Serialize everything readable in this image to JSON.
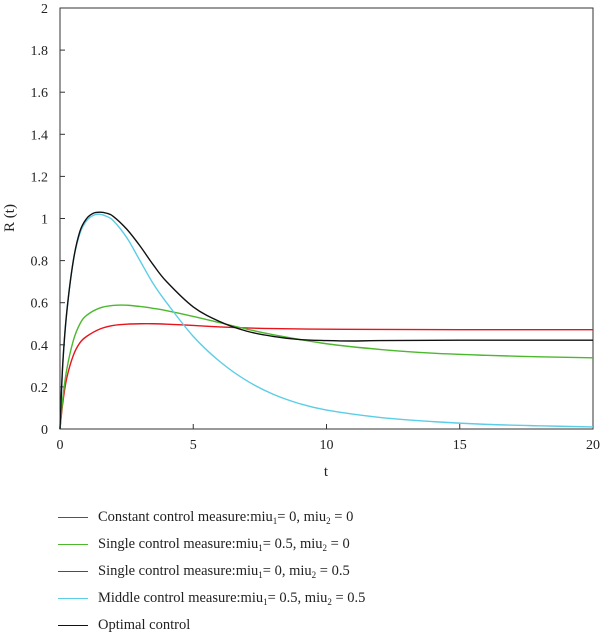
{
  "chart_data": {
    "type": "line",
    "title": "",
    "xlabel": "t",
    "ylabel": "R (t)",
    "xlim": [
      0,
      20
    ],
    "ylim": [
      0,
      2
    ],
    "xticks": [
      0,
      5,
      10,
      15,
      20
    ],
    "yticks": [
      0,
      0.2,
      0.4,
      0.6,
      0.8,
      1,
      1.2,
      1.4,
      1.6,
      1.8,
      2
    ],
    "grid": false,
    "legend_position": "bottom",
    "series": [
      {
        "name": "Constant control measure:miu1 = 0, miu2 = 0",
        "legend_parts": [
          "Constant control measure:miu",
          "1",
          "= 0, miu",
          "2",
          " = 0"
        ],
        "color": "#e8141c",
        "x": [
          0,
          0.1,
          0.25,
          0.5,
          0.75,
          1,
          1.5,
          2,
          2.5,
          3,
          3.5,
          4,
          5,
          6,
          7,
          8,
          10,
          12,
          15,
          20
        ],
        "y": [
          0,
          0.12,
          0.24,
          0.35,
          0.41,
          0.44,
          0.475,
          0.492,
          0.498,
          0.5,
          0.5,
          0.498,
          0.492,
          0.485,
          0.48,
          0.477,
          0.474,
          0.473,
          0.472,
          0.472
        ]
      },
      {
        "name": "Single control measure:miu1 = 0.5, miu2 = 0",
        "legend_parts": [
          "Single control measure:miu",
          "1",
          "= 0.5, miu",
          "2",
          " = 0"
        ],
        "color": "#4cb82e",
        "x": [
          0,
          0.1,
          0.25,
          0.5,
          0.75,
          1,
          1.5,
          2,
          2.5,
          3,
          3.5,
          4,
          5,
          6,
          7,
          8,
          10,
          12,
          14,
          16,
          18,
          20
        ],
        "y": [
          0,
          0.14,
          0.28,
          0.42,
          0.5,
          0.54,
          0.575,
          0.587,
          0.588,
          0.582,
          0.573,
          0.562,
          0.535,
          0.505,
          0.475,
          0.448,
          0.405,
          0.378,
          0.36,
          0.35,
          0.343,
          0.338
        ]
      },
      {
        "name": "Single control measure:miu1 = 0, miu2 = 0.5",
        "legend_parts": [
          "Single control measure:miu",
          "1",
          "= 0, miu",
          "2",
          " = 0.5"
        ],
        "color": "#2a4fa8",
        "x": [],
        "y": []
      },
      {
        "name": "Middle control measure:miu1 = 0.5, miu2 = 0.5",
        "legend_parts": [
          "Middle control measure:miu",
          "1",
          "= 0.5, miu",
          "2",
          " = 0.5"
        ],
        "color": "#5ccde6",
        "x": [
          0,
          0.1,
          0.25,
          0.5,
          0.75,
          1,
          1.25,
          1.5,
          1.75,
          2,
          2.5,
          3,
          3.5,
          4,
          5,
          6,
          7,
          8,
          9,
          10,
          12,
          14,
          16,
          18,
          20
        ],
        "y": [
          0,
          0.3,
          0.55,
          0.8,
          0.93,
          0.99,
          1.015,
          1.02,
          1.01,
          0.99,
          0.91,
          0.8,
          0.69,
          0.6,
          0.44,
          0.32,
          0.23,
          0.165,
          0.12,
          0.09,
          0.055,
          0.035,
          0.022,
          0.015,
          0.01
        ]
      },
      {
        "name": "Optimal control",
        "legend_parts": [
          "Optimal control"
        ],
        "color": "#111111",
        "x": [
          0,
          0.1,
          0.25,
          0.5,
          0.75,
          1,
          1.25,
          1.5,
          1.75,
          2,
          2.5,
          3,
          3.5,
          4,
          5,
          6,
          7,
          8,
          9,
          10,
          11,
          12,
          15,
          20
        ],
        "y": [
          0,
          0.3,
          0.55,
          0.8,
          0.94,
          1.0,
          1.025,
          1.03,
          1.025,
          1.01,
          0.95,
          0.87,
          0.78,
          0.7,
          0.58,
          0.51,
          0.465,
          0.44,
          0.425,
          0.42,
          0.418,
          0.42,
          0.422,
          0.422
        ]
      }
    ]
  }
}
